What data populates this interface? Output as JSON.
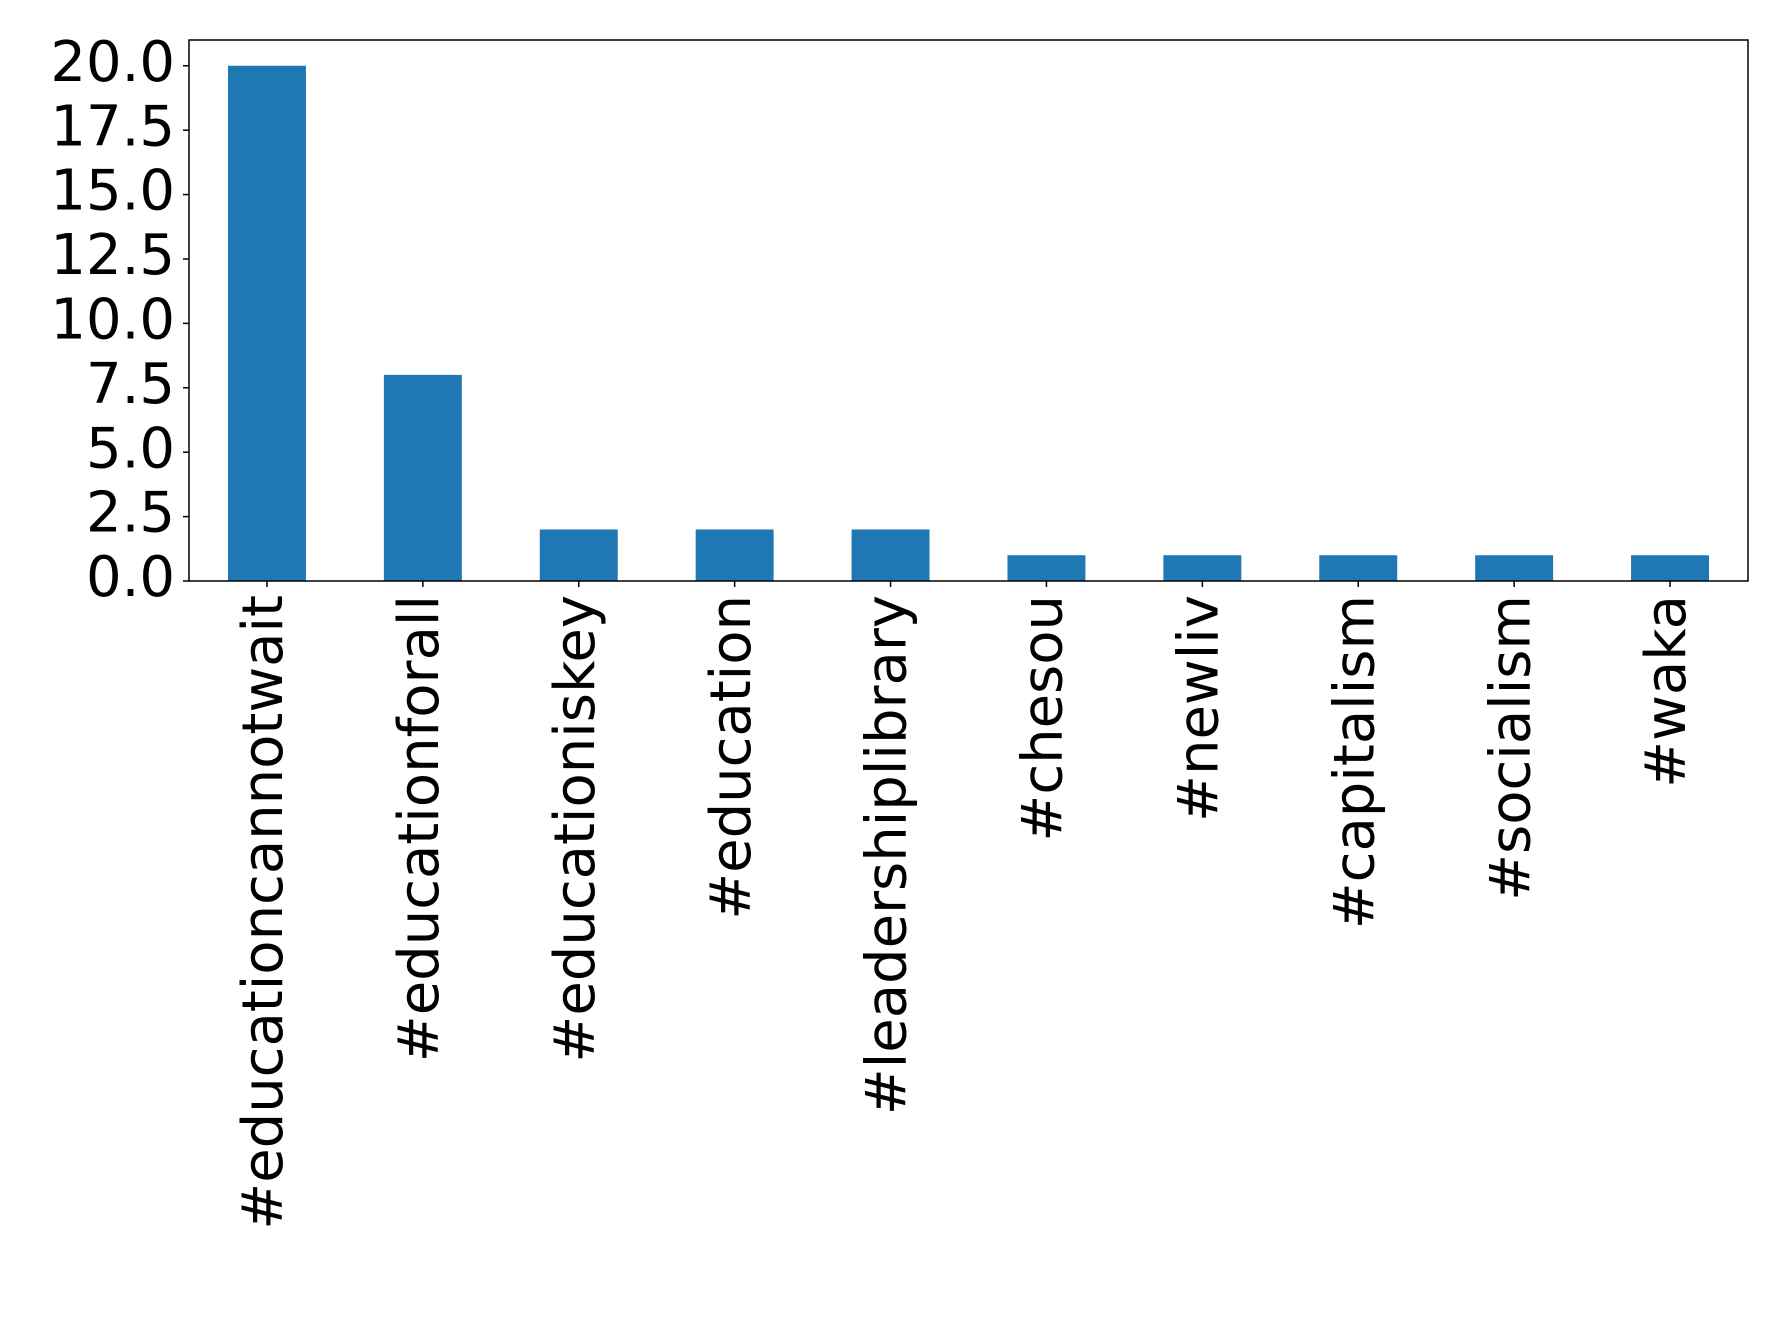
{
  "chart_data": {
    "type": "bar",
    "categories": [
      "#educationcannotwait",
      "#educationforall",
      "#educationiskey",
      "#education",
      "#leadershiplibrary",
      "#chesou",
      "#newliv",
      "#capitalism",
      "#socialism",
      "#waka"
    ],
    "values": [
      20,
      8,
      2,
      2,
      2,
      1,
      1,
      1,
      1,
      1
    ],
    "color": "#1f77b4",
    "ylim": [
      0,
      21
    ],
    "yticks": [
      {
        "value": 0,
        "label": "0.0"
      },
      2.5,
      {
        "value": 5,
        "label": "5.0"
      },
      7.5,
      {
        "value": 10,
        "label": "10.0"
      },
      12.5,
      {
        "value": 15,
        "label": "15.0"
      },
      17.5,
      {
        "value": 20,
        "label": "20.0"
      }
    ],
    "grid": false
  }
}
